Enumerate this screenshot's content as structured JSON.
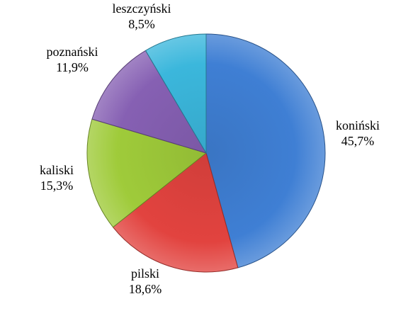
{
  "chart_data": {
    "type": "pie",
    "title": "",
    "categories": [
      "koniński",
      "pilski",
      "kaliski",
      "poznański",
      "leszczyński"
    ],
    "values": [
      45.7,
      18.6,
      15.3,
      11.9,
      8.5
    ],
    "value_labels": [
      "45,7%",
      "18,6%",
      "15,3%",
      "11,9%",
      "8,5%"
    ],
    "colors": [
      "#3f7fd4",
      "#e2433f",
      "#9fcb3a",
      "#8660b3",
      "#3bb7dc"
    ],
    "start_angle": "12 o'clock",
    "direction": "clockwise",
    "legend": "none",
    "data_labels": "outside, category name above percentage"
  }
}
